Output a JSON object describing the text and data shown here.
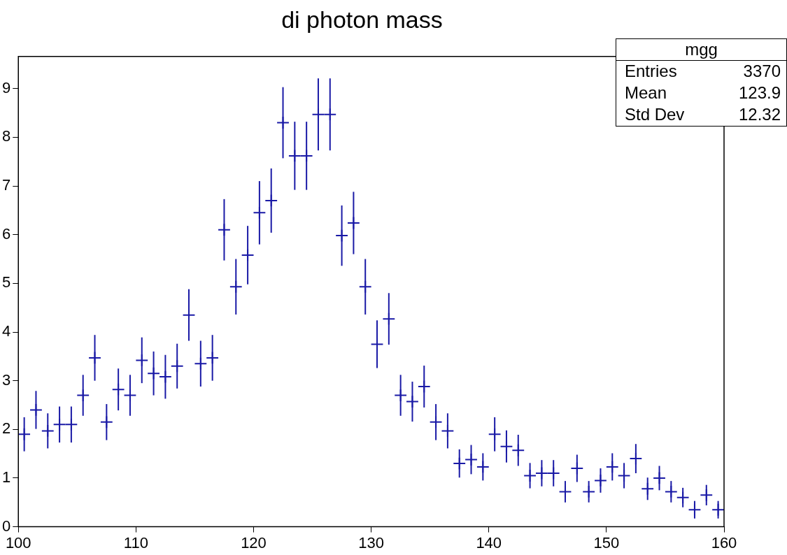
{
  "chart_data": {
    "type": "scatter",
    "title": "di photon mass",
    "marker": "cross",
    "x": [
      100.5,
      101.5,
      102.5,
      103.5,
      104.5,
      105.5,
      106.5,
      107.5,
      108.5,
      109.5,
      110.5,
      111.5,
      112.5,
      113.5,
      114.5,
      115.5,
      116.5,
      117.5,
      118.5,
      119.5,
      120.5,
      121.5,
      122.5,
      123.5,
      124.5,
      125.5,
      126.5,
      127.5,
      128.5,
      129.5,
      130.5,
      131.5,
      132.5,
      133.5,
      134.5,
      135.5,
      136.5,
      137.5,
      138.5,
      139.5,
      140.5,
      141.5,
      142.5,
      143.5,
      144.5,
      145.5,
      146.5,
      147.5,
      148.5,
      149.5,
      150.5,
      151.5,
      152.5,
      153.5,
      154.5,
      155.5,
      156.5,
      157.5,
      158.5,
      159.5
    ],
    "values": [
      1.9,
      2.4,
      1.97,
      2.1,
      2.1,
      2.7,
      3.47,
      2.15,
      2.82,
      2.7,
      3.42,
      3.15,
      3.08,
      3.3,
      4.35,
      3.35,
      3.47,
      6.1,
      4.93,
      5.58,
      6.45,
      6.7,
      8.3,
      7.62,
      7.62,
      8.47,
      8.47,
      5.98,
      6.24,
      4.93,
      3.75,
      4.27,
      2.7,
      2.57,
      2.88,
      2.15,
      1.97,
      1.3,
      1.38,
      1.23,
      1.9,
      1.65,
      1.57,
      1.05,
      1.1,
      1.1,
      0.72,
      1.2,
      0.72,
      0.95,
      1.23,
      1.05,
      1.4,
      0.78,
      1.0,
      0.72,
      0.6,
      0.35,
      0.65,
      0.35
    ],
    "errors": [
      0.35,
      0.39,
      0.36,
      0.37,
      0.37,
      0.42,
      0.47,
      0.37,
      0.43,
      0.42,
      0.47,
      0.45,
      0.45,
      0.46,
      0.53,
      0.47,
      0.47,
      0.63,
      0.57,
      0.6,
      0.65,
      0.66,
      0.73,
      0.7,
      0.7,
      0.74,
      0.74,
      0.62,
      0.64,
      0.57,
      0.49,
      0.53,
      0.42,
      0.41,
      0.43,
      0.37,
      0.36,
      0.29,
      0.3,
      0.28,
      0.35,
      0.33,
      0.32,
      0.26,
      0.27,
      0.27,
      0.22,
      0.28,
      0.22,
      0.25,
      0.28,
      0.26,
      0.3,
      0.23,
      0.25,
      0.22,
      0.2,
      0.18,
      0.21,
      0.18
    ],
    "xerrors": [
      0.5,
      0.5,
      0.5,
      0.5,
      0.5,
      0.5,
      0.5,
      0.5,
      0.5,
      0.5,
      0.5,
      0.5,
      0.5,
      0.5,
      0.5,
      0.5,
      0.5,
      0.5,
      0.5,
      0.5,
      0.5,
      0.5,
      0.5,
      0.5,
      0.5,
      0.5,
      0.5,
      0.5,
      0.5,
      0.5,
      0.5,
      0.5,
      0.5,
      0.5,
      0.5,
      0.5,
      0.5,
      0.5,
      0.5,
      0.5,
      0.5,
      0.5,
      0.5,
      0.5,
      0.5,
      0.5,
      0.5,
      0.5,
      0.5,
      0.5,
      0.5,
      0.5,
      0.5,
      0.5,
      0.5,
      0.5,
      0.5,
      0.5,
      0.5,
      0.5
    ],
    "color": "#1a1aa6",
    "xlim": [
      100,
      160
    ],
    "xticks": [
      100,
      110,
      120,
      130,
      140,
      150,
      160
    ],
    "ylim": [
      0,
      9.66
    ],
    "yticks": [
      0,
      1,
      2,
      3,
      4,
      5,
      6,
      7,
      8,
      9
    ],
    "annotations": [
      "mgg",
      "Entries",
      "3370",
      "Mean",
      "123.9",
      "Std Dev",
      "12.32"
    ]
  }
}
